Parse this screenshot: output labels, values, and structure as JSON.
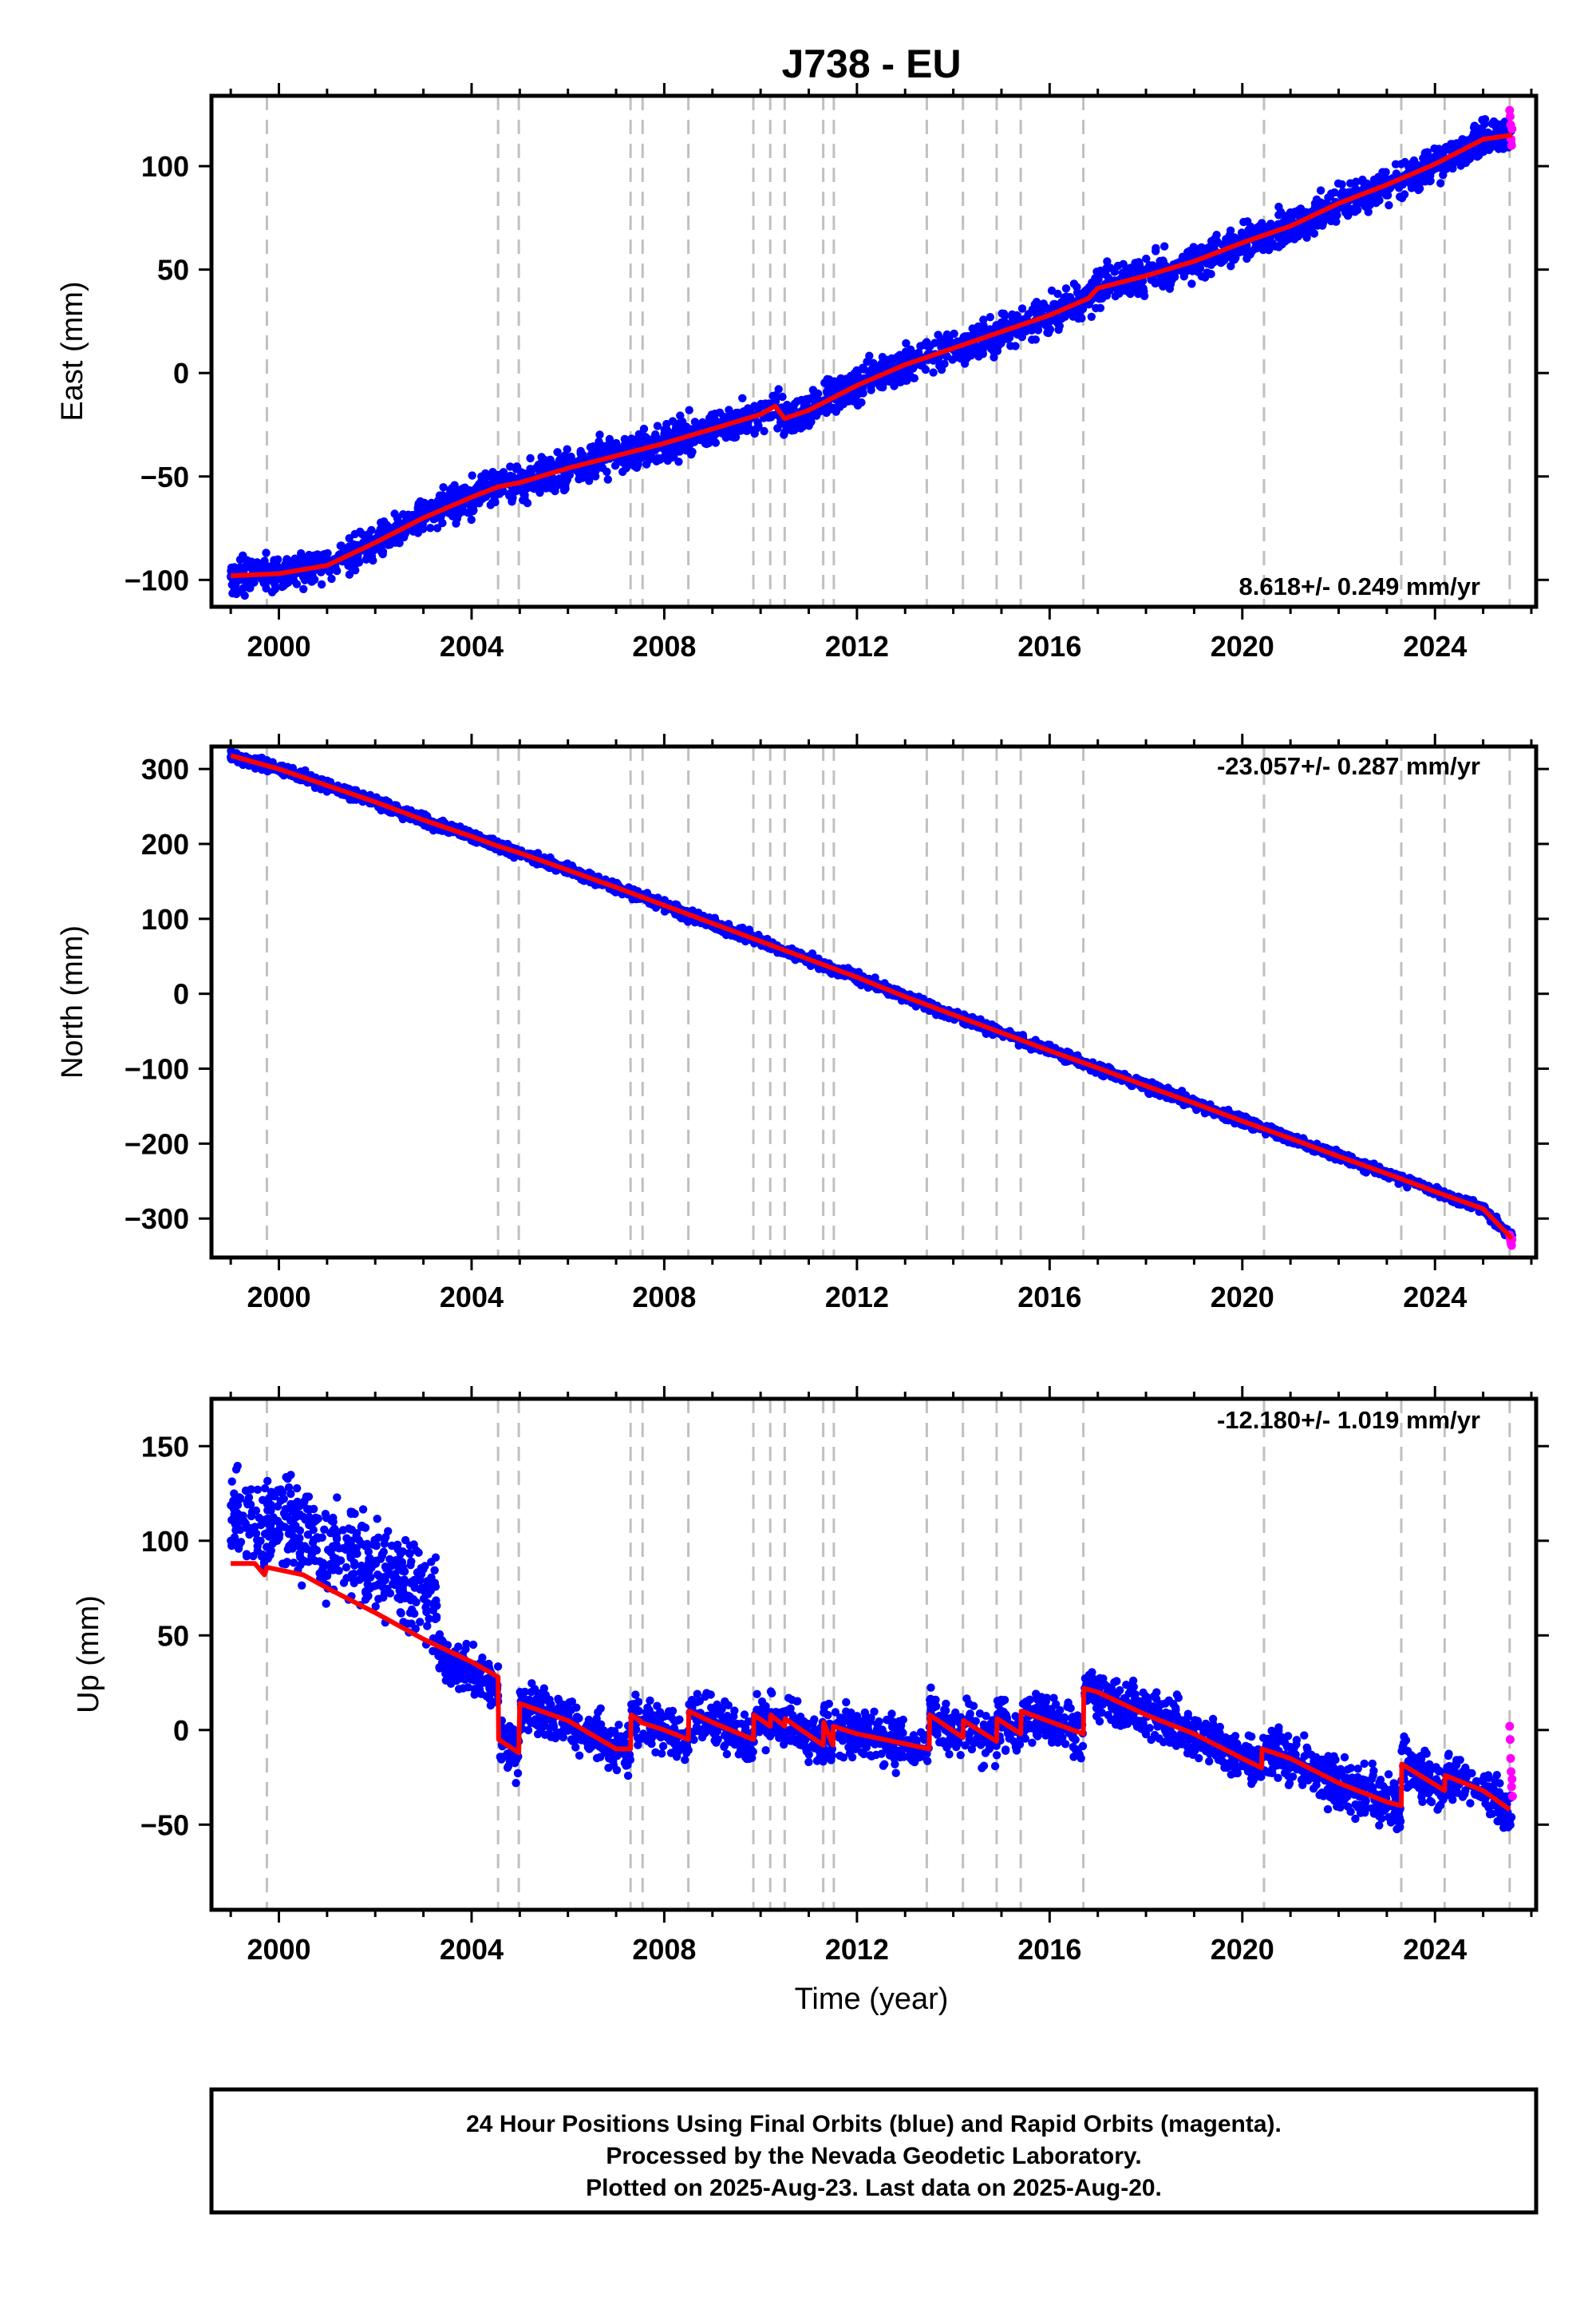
{
  "title": "J738 - EU",
  "colors": {
    "final_orbits": "#0000ff",
    "rapid_orbits": "#ff00ff",
    "model": "#ff0000",
    "event_lines": "#c0c0c0"
  },
  "chart_data": [
    {
      "type": "scatter",
      "panel": "east",
      "ylabel": "East (mm)",
      "xlabel": "",
      "xlim": [
        1998.6,
        2026.1
      ],
      "ylim": [
        -113,
        134
      ],
      "xticks": [
        2000,
        2004,
        2008,
        2012,
        2016,
        2020,
        2024
      ],
      "yticks": [
        -100,
        -50,
        0,
        50,
        100
      ],
      "rate_label": "8.618+/- 0.249 mm/yr",
      "rate_position": "bottom-right",
      "trend": [
        [
          1999.0,
          -98
        ],
        [
          2000.0,
          -97
        ],
        [
          2001.0,
          -93
        ],
        [
          2002.0,
          -82
        ],
        [
          2003.0,
          -70
        ],
        [
          2004.0,
          -60
        ],
        [
          2004.55,
          -55
        ],
        [
          2005.0,
          -53
        ],
        [
          2006.0,
          -46
        ],
        [
          2007.0,
          -40
        ],
        [
          2008.0,
          -34
        ],
        [
          2009.0,
          -27
        ],
        [
          2010.0,
          -20
        ],
        [
          2010.3,
          -16
        ],
        [
          2010.5,
          -22
        ],
        [
          2011.0,
          -18
        ],
        [
          2012.0,
          -6
        ],
        [
          2013.0,
          4
        ],
        [
          2014.0,
          12
        ],
        [
          2015.0,
          20
        ],
        [
          2016.0,
          28
        ],
        [
          2016.8,
          36
        ],
        [
          2017.0,
          41
        ],
        [
          2018.0,
          47
        ],
        [
          2019.0,
          54
        ],
        [
          2020.0,
          63
        ],
        [
          2021.0,
          71
        ],
        [
          2022.0,
          82
        ],
        [
          2023.0,
          91
        ],
        [
          2024.0,
          101
        ],
        [
          2025.0,
          113
        ],
        [
          2025.6,
          115
        ]
      ],
      "scatter_spread": 6,
      "rapid_points": [
        [
          2025.55,
          127
        ],
        [
          2025.56,
          124
        ],
        [
          2025.57,
          120
        ],
        [
          2025.58,
          113
        ],
        [
          2025.59,
          110
        ],
        [
          2025.6,
          118
        ]
      ]
    },
    {
      "type": "scatter",
      "panel": "north",
      "ylabel": "North (mm)",
      "xlabel": "",
      "xlim": [
        1998.6,
        2026.1
      ],
      "ylim": [
        -352,
        330
      ],
      "xticks": [
        2000,
        2004,
        2008,
        2012,
        2016,
        2020,
        2024
      ],
      "yticks": [
        -300,
        -200,
        -100,
        0,
        100,
        200,
        300
      ],
      "rate_label": "-23.057+/- 0.287 mm/yr",
      "rate_position": "top-right",
      "trend": [
        [
          1999.0,
          318
        ],
        [
          2000.0,
          300
        ],
        [
          2001.0,
          278
        ],
        [
          2002.0,
          256
        ],
        [
          2003.0,
          232
        ],
        [
          2004.0,
          210
        ],
        [
          2004.55,
          197
        ],
        [
          2005.0,
          188
        ],
        [
          2006.0,
          165
        ],
        [
          2007.0,
          142
        ],
        [
          2008.0,
          118
        ],
        [
          2009.0,
          94
        ],
        [
          2010.0,
          70
        ],
        [
          2011.0,
          46
        ],
        [
          2012.0,
          22
        ],
        [
          2013.0,
          -4
        ],
        [
          2014.0,
          -28
        ],
        [
          2015.0,
          -52
        ],
        [
          2016.0,
          -76
        ],
        [
          2017.0,
          -99
        ],
        [
          2018.0,
          -123
        ],
        [
          2019.0,
          -146
        ],
        [
          2020.0,
          -170
        ],
        [
          2021.0,
          -193
        ],
        [
          2022.0,
          -217
        ],
        [
          2023.0,
          -240
        ],
        [
          2024.0,
          -264
        ],
        [
          2025.0,
          -287
        ],
        [
          2025.6,
          -327
        ]
      ],
      "scatter_spread": 5,
      "rapid_points": [
        [
          2025.55,
          -322
        ],
        [
          2025.56,
          -326
        ],
        [
          2025.57,
          -330
        ],
        [
          2025.58,
          -333
        ],
        [
          2025.59,
          -336
        ],
        [
          2025.6,
          -328
        ]
      ]
    },
    {
      "type": "scatter",
      "panel": "up",
      "ylabel": "Up (mm)",
      "xlabel": "Time (year)",
      "xlim": [
        1998.6,
        2026.1
      ],
      "ylim": [
        -95,
        175
      ],
      "xticks": [
        2000,
        2004,
        2008,
        2012,
        2016,
        2020,
        2024
      ],
      "yticks": [
        -50,
        0,
        50,
        100,
        150
      ],
      "rate_label": "-12.180+/- 1.019 mm/yr",
      "rate_position": "top-right",
      "trend": [
        [
          1999.0,
          88
        ],
        [
          1999.5,
          88
        ],
        [
          1999.7,
          82
        ],
        [
          1999.75,
          86
        ],
        [
          2000.5,
          82
        ],
        [
          2001.0,
          75
        ],
        [
          2002.0,
          62
        ],
        [
          2003.0,
          48
        ],
        [
          2004.0,
          36
        ],
        [
          2004.55,
          28
        ],
        [
          2004.56,
          -5
        ],
        [
          2004.98,
          -12
        ],
        [
          2005.0,
          14
        ],
        [
          2006.0,
          5
        ],
        [
          2007.0,
          -10
        ],
        [
          2007.3,
          -10
        ],
        [
          2007.31,
          8
        ],
        [
          2007.5,
          5
        ],
        [
          2007.51,
          4
        ],
        [
          2008.0,
          0
        ],
        [
          2008.5,
          -5
        ],
        [
          2008.51,
          10
        ],
        [
          2009.0,
          4
        ],
        [
          2009.85,
          -5
        ],
        [
          2009.86,
          8
        ],
        [
          2010.2,
          2
        ],
        [
          2010.21,
          8
        ],
        [
          2010.5,
          2
        ],
        [
          2010.51,
          6
        ],
        [
          2011.3,
          -8
        ],
        [
          2011.31,
          4
        ],
        [
          2011.5,
          -8
        ],
        [
          2011.51,
          2
        ],
        [
          2012.0,
          -2
        ],
        [
          2013.5,
          -10
        ],
        [
          2013.51,
          8
        ],
        [
          2014.2,
          -4
        ],
        [
          2014.21,
          5
        ],
        [
          2014.9,
          -6
        ],
        [
          2014.91,
          6
        ],
        [
          2015.4,
          -2
        ],
        [
          2015.41,
          10
        ],
        [
          2016.7,
          -2
        ],
        [
          2016.71,
          22
        ],
        [
          2017.0,
          20
        ],
        [
          2018.0,
          8
        ],
        [
          2019.0,
          -2
        ],
        [
          2020.0,
          -15
        ],
        [
          2020.4,
          -20
        ],
        [
          2020.41,
          -10
        ],
        [
          2021.0,
          -15
        ],
        [
          2022.0,
          -28
        ],
        [
          2023.0,
          -38
        ],
        [
          2023.3,
          -40
        ],
        [
          2023.31,
          -18
        ],
        [
          2024.2,
          -32
        ],
        [
          2024.21,
          -24
        ],
        [
          2025.0,
          -32
        ],
        [
          2025.55,
          -42
        ]
      ],
      "scatter_segments": [
        {
          "x": [
            1999.0,
            2003.3
          ],
          "offset": 25,
          "spread": 18
        },
        {
          "x": [
            2003.3,
            2004.6
          ],
          "offset": -5,
          "spread": 9
        },
        {
          "x": [
            2004.6,
            2020.9
          ],
          "offset": 0,
          "spread": 9
        },
        {
          "x": [
            2020.9,
            2025.6
          ],
          "offset": 0,
          "spread": 9
        }
      ],
      "rapid_points": [
        [
          2025.55,
          2
        ],
        [
          2025.56,
          -5
        ],
        [
          2025.57,
          -15
        ],
        [
          2025.58,
          -22
        ],
        [
          2025.59,
          -30
        ],
        [
          2025.6,
          -26
        ],
        [
          2025.61,
          -35
        ]
      ]
    }
  ],
  "event_lines": [
    1999.75,
    2004.55,
    2004.98,
    2007.3,
    2007.55,
    2008.5,
    2009.85,
    2010.2,
    2010.5,
    2011.3,
    2011.52,
    2013.45,
    2014.2,
    2014.9,
    2015.4,
    2016.7,
    2020.45,
    2023.3,
    2024.2,
    2025.55
  ],
  "footer": {
    "line1": "24 Hour Positions Using Final Orbits (blue) and Rapid Orbits (magenta).",
    "line2": "Processed by the Nevada Geodetic Laboratory.",
    "line3": "Plotted on 2025-Aug-23. Last data on 2025-Aug-20."
  }
}
